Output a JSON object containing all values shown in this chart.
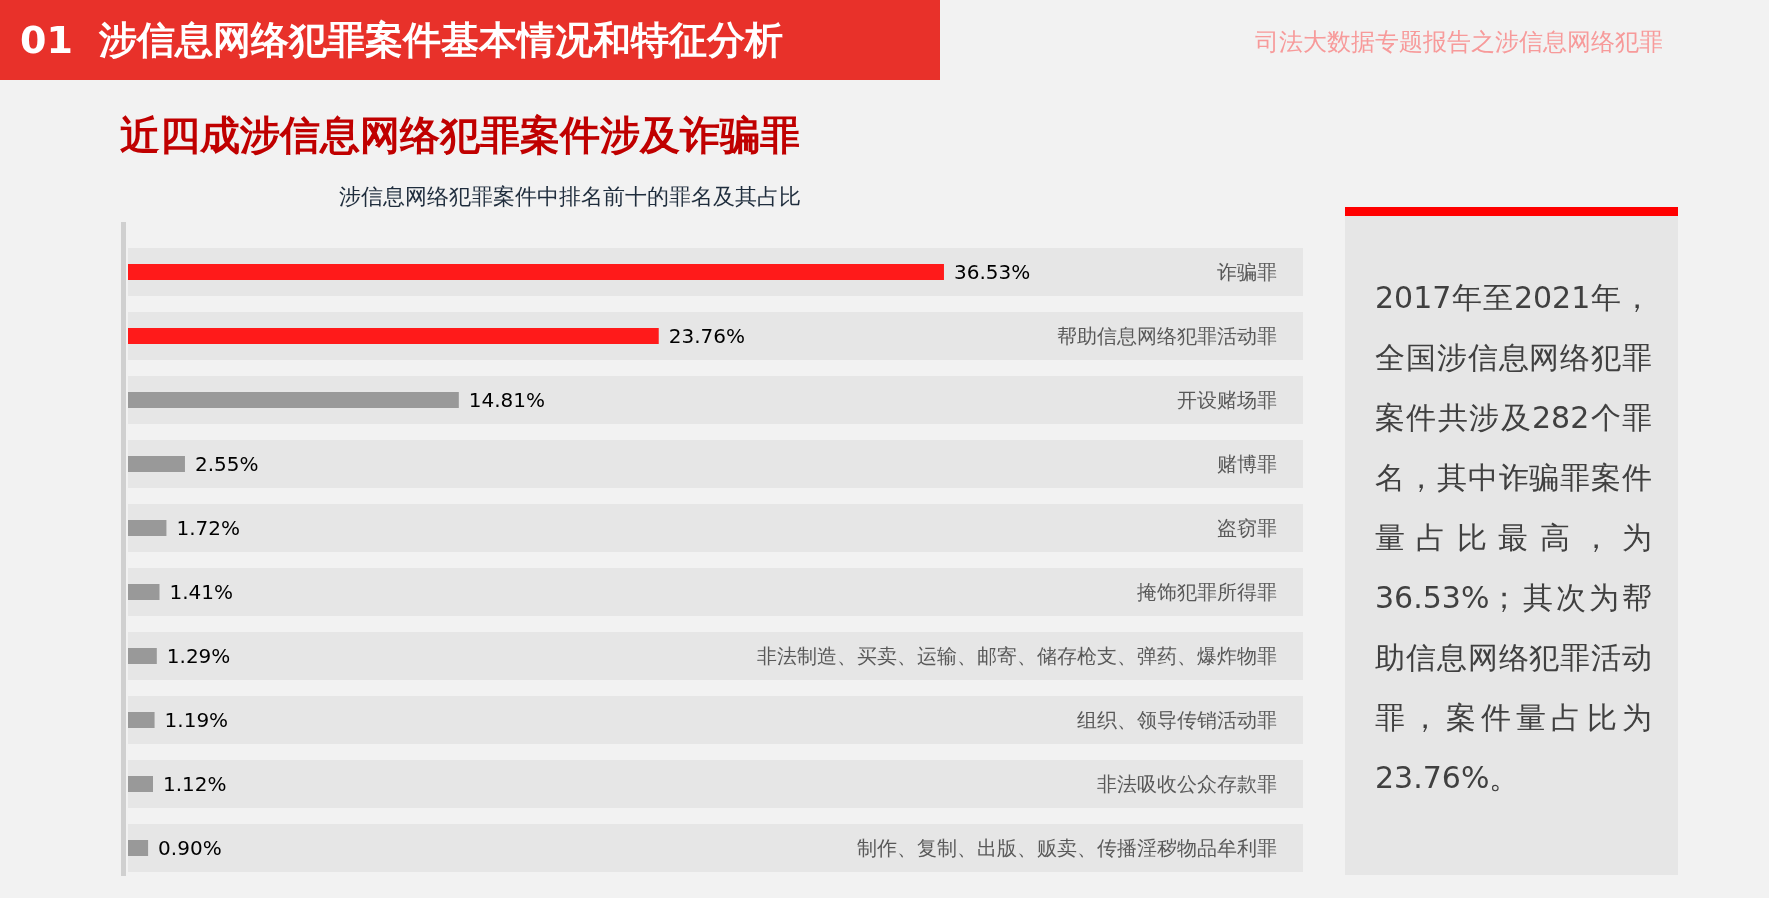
{
  "chart_data": {
    "type": "bar",
    "orientation": "horizontal",
    "title": "近四成涉信息网络犯罪案件涉及诈骗罪",
    "subtitle": "涉信息网络犯罪案件中排名前十的罪名及其占比",
    "annotations": [
      "01  涉信息网络犯罪案件基本情况和特征分析",
      "司法大数据专题报告之涉信息网络犯罪",
      "2017年至2021年，全国涉信息网络犯罪案件共涉及282个罪名，其中诈骗罪案件量占比最高，为36.53%；其次为帮助信息网络犯罪活动罪，案件量占比为23.76%。"
    ],
    "categories": [
      "诈骗罪",
      "帮助信息网络犯罪活动罪",
      "开设赌场罪",
      "赌博罪",
      "盗窃罪",
      "掩饰犯罪所得罪",
      "非法制造、买卖、运输、邮寄、储存枪支、弹药、爆炸物罪",
      "组织、领导传销活动罪",
      "非法吸收公众存款罪",
      "制作、复制、出版、贩卖、传播淫秽物品牟利罪"
    ],
    "values": [
      36.53,
      23.76,
      14.81,
      2.55,
      1.72,
      1.41,
      1.29,
      1.19,
      1.12,
      0.9
    ],
    "value_labels": [
      "36.53%",
      "23.76%",
      "14.81%",
      "2.55%",
      "1.72%",
      "1.41%",
      "1.29%",
      "1.19%",
      "1.12%",
      "0.90%"
    ],
    "colors": [
      "#ff1a1a",
      "#ff1a1a",
      "#999999",
      "#999999",
      "#999999",
      "#999999",
      "#999999",
      "#999999",
      "#999999",
      "#999999"
    ]
  }
}
